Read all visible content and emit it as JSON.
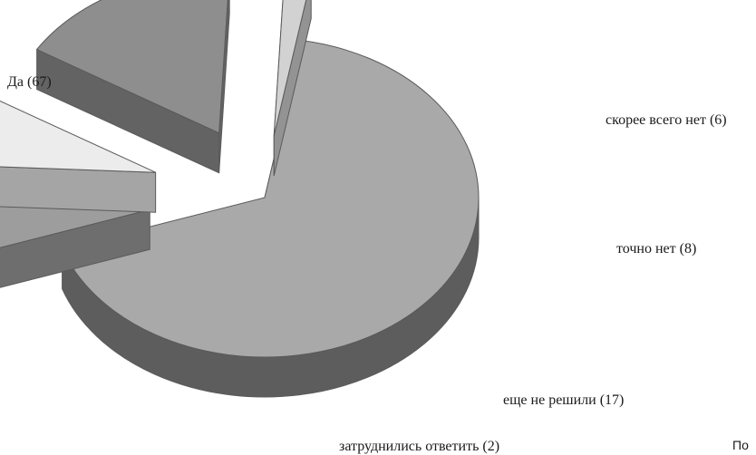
{
  "chart_data": {
    "type": "pie",
    "style": "3d-exploded",
    "slices": [
      {
        "label": "Да (67)",
        "value": 67,
        "color": "#a9a9a9"
      },
      {
        "label": "скорее всего нет (6)",
        "value": 6,
        "color": "#9d9d9d"
      },
      {
        "label": "точно нет (8)",
        "value": 8,
        "color": "#ececec"
      },
      {
        "label": "еще не решили (17)",
        "value": 17,
        "color": "#8e8e8e"
      },
      {
        "label": "затруднились ответить (2)",
        "value": 2,
        "color": "#d2d2d2"
      }
    ]
  },
  "corner_text": "По"
}
